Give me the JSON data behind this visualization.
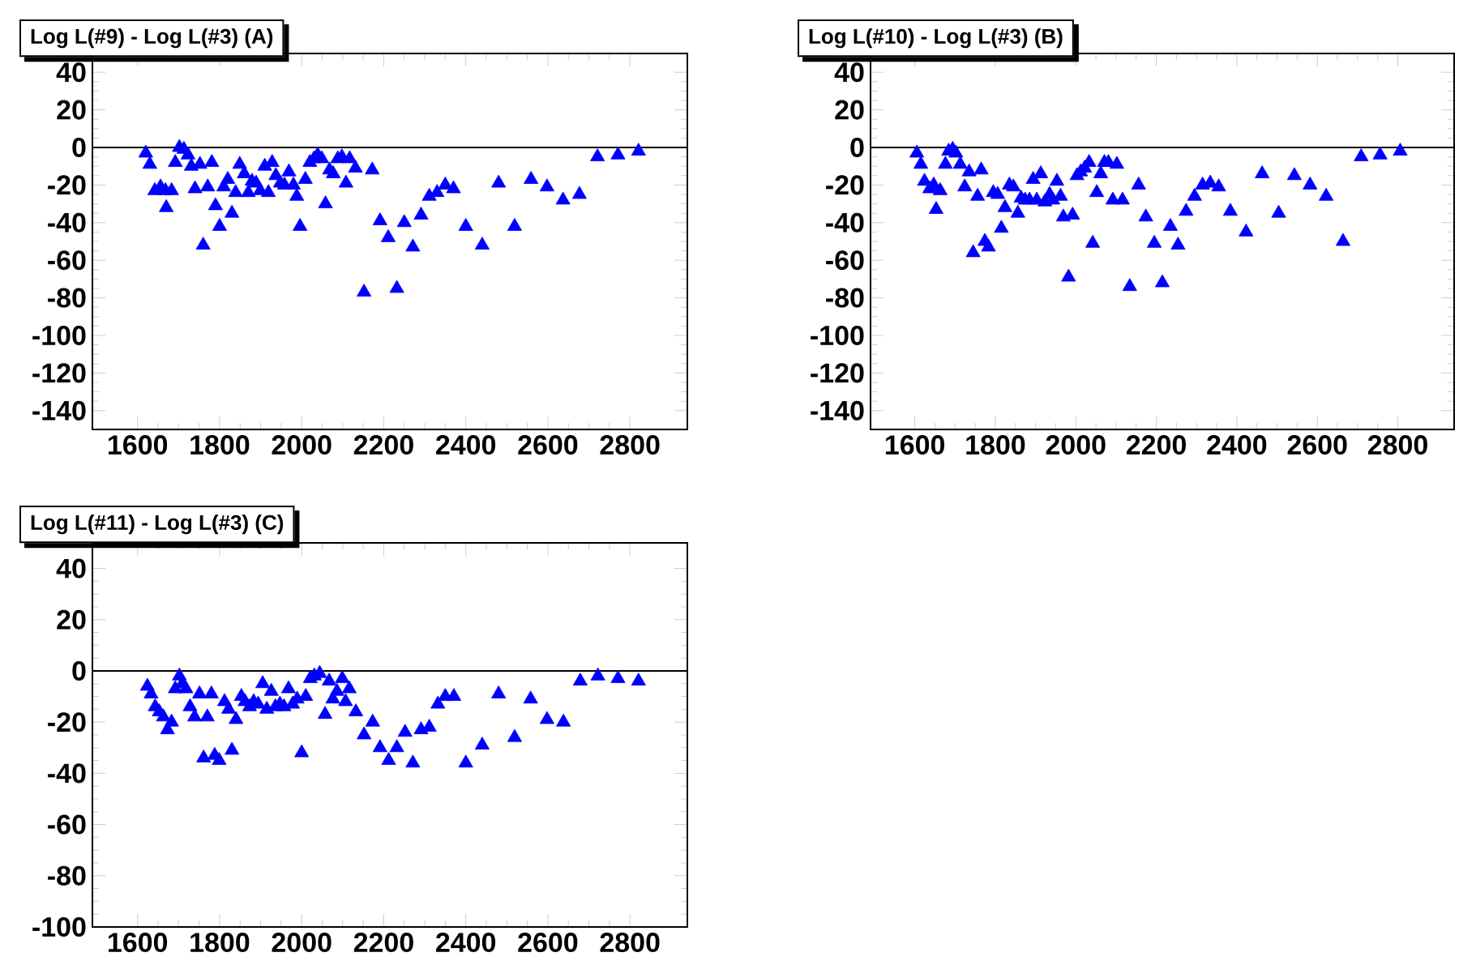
{
  "chart_data": [
    {
      "type": "scatter",
      "title": "Log L(#9) - Log L(#3) (A)",
      "marker": "triangle",
      "color": "#0000ff",
      "xlim": [
        1490,
        2940
      ],
      "ylim": [
        -150,
        50
      ],
      "xticks": [
        1600,
        1800,
        2000,
        2200,
        2400,
        2600,
        2800
      ],
      "yticks": [
        -140,
        -120,
        -100,
        -80,
        -60,
        -40,
        -20,
        0,
        20,
        40
      ],
      "ref_lines": [
        {
          "axis": "y",
          "value": 0,
          "color": "#000000"
        }
      ],
      "x": [
        1620,
        1630,
        1642,
        1656,
        1668,
        1683,
        1670,
        1692,
        1702,
        1713,
        1723,
        1731,
        1740,
        1752,
        1760,
        1771,
        1781,
        1790,
        1800,
        1810,
        1820,
        1830,
        1839,
        1849,
        1860,
        1870,
        1879,
        1889,
        1899,
        1910,
        1919,
        1928,
        1937,
        1948,
        1958,
        1969,
        1980,
        1988,
        1996,
        2009,
        2020,
        2030,
        2039,
        2049,
        2058,
        2068,
        2077,
        2088,
        2098,
        2108,
        2117,
        2131,
        2172,
        2152,
        2191,
        2211,
        2232,
        2250,
        2271,
        2291,
        2311,
        2330,
        2350,
        2370,
        2400,
        2440,
        2480,
        2519,
        2559,
        2598,
        2637,
        2677,
        2721,
        2771,
        2821
      ],
      "values": [
        -3,
        -9,
        -23,
        -21,
        -23,
        -23,
        -32,
        -8,
        0,
        -1,
        -4,
        -10,
        -22,
        -9,
        -52,
        -21,
        -8,
        -31,
        -42,
        -21,
        -17,
        -35,
        -24,
        -9,
        -14,
        -24,
        -18,
        -19,
        -23,
        -10,
        -24,
        -8,
        -15,
        -19,
        -20,
        -13,
        -20,
        -26,
        -42,
        -17,
        -8,
        -6,
        -4,
        -6,
        -30,
        -12,
        -14,
        -6,
        -5,
        -19,
        -6,
        -11,
        -12,
        -77,
        -39,
        -48,
        -75,
        -40,
        -53,
        -36,
        -26,
        -24,
        -20,
        -22,
        -42,
        -52,
        -19,
        -42,
        -17,
        -21,
        -28,
        -25,
        -5,
        -4,
        -2
      ]
    },
    {
      "type": "scatter",
      "title": "Log L(#10) - Log L(#3) (B)",
      "marker": "triangle",
      "color": "#0000ff",
      "xlim": [
        1490,
        2940
      ],
      "ylim": [
        -150,
        50
      ],
      "xticks": [
        1600,
        1800,
        2000,
        2200,
        2400,
        2600,
        2800
      ],
      "yticks": [
        -140,
        -120,
        -100,
        -80,
        -60,
        -40,
        -20,
        0,
        20,
        40
      ],
      "ref_lines": [
        {
          "axis": "y",
          "value": 0,
          "color": "#000000"
        }
      ],
      "x": [
        1605,
        1615,
        1624,
        1637,
        1647,
        1663,
        1653,
        1676,
        1684,
        1694,
        1702,
        1713,
        1724,
        1735,
        1745,
        1756,
        1765,
        1774,
        1783,
        1795,
        1806,
        1815,
        1824,
        1835,
        1845,
        1856,
        1864,
        1874,
        1885,
        1894,
        1903,
        1913,
        1923,
        1935,
        1943,
        1953,
        1962,
        1969,
        1982,
        1992,
        2003,
        2012,
        2022,
        2033,
        2042,
        2052,
        2062,
        2071,
        2081,
        2092,
        2102,
        2116,
        2134,
        2156,
        2174,
        2195,
        2215,
        2235,
        2254,
        2274,
        2295,
        2315,
        2334,
        2355,
        2384,
        2423,
        2463,
        2504,
        2543,
        2582,
        2622,
        2664,
        2709,
        2756,
        2806
      ],
      "values": [
        -3,
        -9,
        -18,
        -22,
        -20,
        -23,
        -33,
        -9,
        -2,
        -1,
        -3,
        -9,
        -21,
        -13,
        -56,
        -26,
        -12,
        -50,
        -53,
        -24,
        -25,
        -43,
        -32,
        -20,
        -21,
        -35,
        -27,
        -28,
        -28,
        -17,
        -28,
        -14,
        -29,
        -25,
        -28,
        -18,
        -26,
        -37,
        -69,
        -36,
        -15,
        -13,
        -11,
        -8,
        -51,
        -24,
        -14,
        -8,
        -8,
        -28,
        -9,
        -28,
        -74,
        -20,
        -37,
        -51,
        -72,
        -42,
        -52,
        -34,
        -26,
        -20,
        -19,
        -21,
        -34,
        -45,
        -14,
        -35,
        -15,
        -20,
        -26,
        -50,
        -5,
        -4,
        -2
      ]
    },
    {
      "type": "scatter",
      "title": "Log L(#11) - Log L(#3) (C)",
      "marker": "triangle",
      "color": "#0000ff",
      "xlim": [
        1490,
        2940
      ],
      "ylim": [
        -100,
        50
      ],
      "xticks": [
        1600,
        1800,
        2000,
        2200,
        2400,
        2600,
        2800
      ],
      "yticks": [
        -100,
        -80,
        -60,
        -40,
        -20,
        0,
        20,
        40
      ],
      "ref_lines": [
        {
          "axis": "y",
          "value": 0,
          "color": "#000000"
        }
      ],
      "x": [
        1624,
        1633,
        1643,
        1653,
        1663,
        1673,
        1683,
        1692,
        1702,
        1709,
        1718,
        1728,
        1739,
        1751,
        1761,
        1770,
        1780,
        1788,
        1799,
        1812,
        1822,
        1830,
        1840,
        1853,
        1862,
        1873,
        1883,
        1894,
        1905,
        1915,
        1926,
        1936,
        1947,
        1957,
        1968,
        1978,
        1989,
        2000,
        2010,
        2021,
        2031,
        2044,
        2057,
        2067,
        2076,
        2086,
        2099,
        2107,
        2116,
        2132,
        2152,
        2173,
        2191,
        2212,
        2232,
        2252,
        2271,
        2291,
        2311,
        2332,
        2350,
        2371,
        2400,
        2440,
        2480,
        2519,
        2558,
        2598,
        2638,
        2679,
        2722,
        2771,
        2821
      ],
      "values": [
        -6,
        -9,
        -14,
        -16,
        -18,
        -23,
        -20,
        -7,
        -2,
        -5,
        -7,
        -14,
        -18,
        -9,
        -34,
        -18,
        -9,
        -33,
        -35,
        -12,
        -15,
        -31,
        -19,
        -10,
        -12,
        -14,
        -12,
        -13,
        -5,
        -15,
        -8,
        -14,
        -13,
        -14,
        -7,
        -13,
        -11,
        -32,
        -10,
        -3,
        -2,
        -1,
        -17,
        -4,
        -11,
        -8,
        -3,
        -12,
        -7,
        -16,
        -25,
        -20,
        -30,
        -35,
        -30,
        -24,
        -36,
        -23,
        -22,
        -13,
        -10,
        -10,
        -36,
        -29,
        -9,
        -26,
        -11,
        -19,
        -20,
        -4,
        -2,
        -3,
        -4
      ]
    }
  ]
}
